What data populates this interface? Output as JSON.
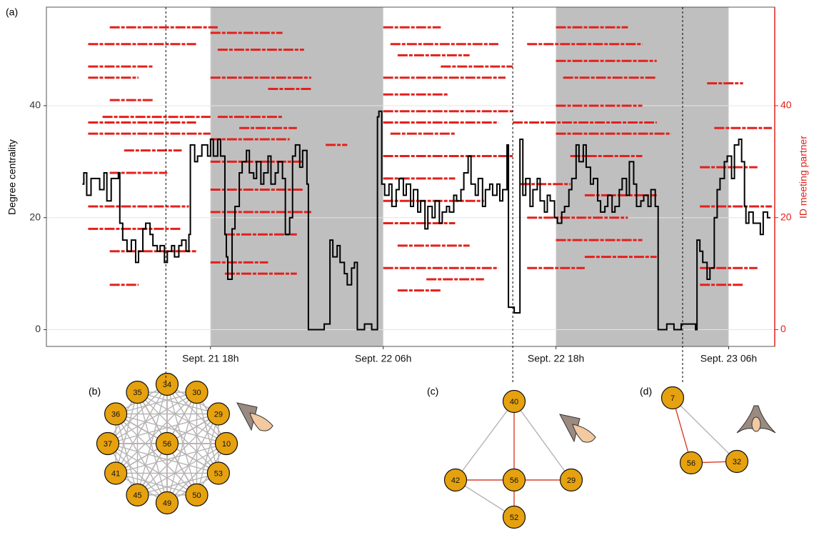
{
  "chart_data": {
    "type": "line",
    "panel_label": "(a)",
    "y_label": "Degree centrality",
    "y2_label": "ID meeting partner",
    "xlim": [
      6.6,
      57.2
    ],
    "xticks": [
      {
        "value": 18,
        "label": "Sept. 21 18h"
      },
      {
        "value": 30,
        "label": "Sept. 22 06h"
      },
      {
        "value": 42,
        "label": "Sept. 22 18h"
      },
      {
        "value": 54,
        "label": "Sept. 23 06h"
      }
    ],
    "ylim": [
      -3,
      57.6
    ],
    "yticks": [
      0,
      20,
      40
    ],
    "y2lim": [
      -3,
      57.6
    ],
    "y2ticks": [
      0,
      20,
      40
    ],
    "grid": true,
    "night_shading": {
      "color": "#c0bfc0",
      "ranges": [
        [
          18,
          30
        ],
        [
          42,
          54
        ]
      ]
    },
    "markers": [
      14.9,
      39.0,
      50.8
    ],
    "series": [
      {
        "color": "#000000",
        "x": [
          9.1,
          9.2,
          9.4,
          9.7,
          10.1,
          10.3,
          10.6,
          10.8,
          11.1,
          11.3,
          11.6,
          11.7,
          11.9,
          12.2,
          12.5,
          12.8,
          13.0,
          13.3,
          13.5,
          13.8,
          14.0,
          14.3,
          14.5,
          14.8,
          15.0,
          15.3,
          15.5,
          15.8,
          16.0,
          16.3,
          16.5,
          16.6,
          16.9,
          17.1,
          17.4,
          17.8,
          18.0,
          18.2,
          18.5,
          18.7,
          19.0,
          19.1,
          19.2,
          19.5,
          19.7,
          20.0,
          20.2,
          20.5,
          20.7,
          21.0,
          21.2,
          21.5,
          21.7,
          22.0,
          22.2,
          22.5,
          22.7,
          23.0,
          23.2,
          23.5,
          23.7,
          23.9,
          24.2,
          24.4,
          24.7,
          24.8,
          25.9,
          26.3,
          26.5,
          26.8,
          27.0,
          27.3,
          27.5,
          27.8,
          28.0,
          28.2,
          28.7,
          29.2,
          29.6,
          29.7,
          29.9,
          30.1,
          30.4,
          30.6,
          30.9,
          31.1,
          31.4,
          31.6,
          31.9,
          32.1,
          32.4,
          32.6,
          32.9,
          33.1,
          33.4,
          33.6,
          33.9,
          34.1,
          34.4,
          34.6,
          34.9,
          35.1,
          35.4,
          35.6,
          35.9,
          36.1,
          36.4,
          36.6,
          36.9,
          37.1,
          37.4,
          37.6,
          37.9,
          38.1,
          38.3,
          38.6,
          38.7,
          39.1,
          39.5,
          39.7,
          39.9,
          40.2,
          40.4,
          40.7,
          40.9,
          41.2,
          41.4,
          41.6,
          41.9,
          42.1,
          42.4,
          42.6,
          42.9,
          43.1,
          43.4,
          43.6,
          43.9,
          44.1,
          44.4,
          44.6,
          44.9,
          45.1,
          45.4,
          45.6,
          45.9,
          46.1,
          46.4,
          46.6,
          46.9,
          47.1,
          47.4,
          47.6,
          47.9,
          48.1,
          48.4,
          48.6,
          48.9,
          49.1,
          49.7,
          50.2,
          50.7,
          51.7,
          51.8,
          52.0,
          52.2,
          52.5,
          52.7,
          53.0,
          53.2,
          53.4,
          53.7,
          53.9,
          54.2,
          54.4,
          54.7,
          54.9,
          55.1,
          55.2,
          55.4,
          55.7,
          55.9,
          56.2,
          56.4,
          56.7,
          56.9
        ],
        "values": [
          26,
          28,
          24,
          27,
          27,
          25,
          28,
          23,
          27,
          27,
          28,
          19,
          16,
          14,
          16,
          12,
          14,
          18,
          19,
          17,
          15,
          14,
          15,
          12,
          14,
          15,
          13,
          15,
          16,
          14,
          17,
          33,
          30,
          31,
          33,
          31,
          34,
          31,
          34,
          31,
          17,
          13,
          9,
          18,
          22,
          28,
          30,
          32,
          28,
          27,
          30,
          26,
          28,
          31,
          26,
          28,
          30,
          27,
          17,
          20,
          31,
          33,
          29,
          32,
          26,
          0,
          1,
          16,
          13,
          15,
          12,
          10,
          8,
          11,
          12,
          0,
          1,
          0,
          38,
          39,
          26,
          24,
          26,
          22,
          25,
          27,
          24,
          26,
          22,
          25,
          21,
          23,
          18,
          22,
          20,
          23,
          19,
          21,
          22,
          21,
          24,
          23,
          25,
          28,
          31,
          26,
          24,
          27,
          22,
          25,
          26,
          24,
          26,
          23,
          25,
          33,
          4,
          3,
          34,
          24,
          27,
          22,
          25,
          27,
          23,
          21,
          24,
          23,
          20,
          19,
          21,
          22,
          25,
          27,
          33,
          30,
          33,
          29,
          26,
          27,
          23,
          21,
          22,
          24,
          21,
          22,
          25,
          27,
          24,
          30,
          26,
          22,
          23,
          24,
          22,
          25,
          22,
          0,
          1,
          0,
          1,
          0,
          16,
          14,
          12,
          9,
          11,
          20,
          25,
          27,
          30,
          31,
          27,
          33,
          34,
          30,
          22,
          19,
          21,
          19,
          19,
          17,
          21,
          20,
          20
        ]
      }
    ],
    "meetings": {
      "color": "#e3201b",
      "id": [
        54,
        54,
        54,
        53,
        51,
        51,
        51,
        50,
        49,
        48,
        47,
        47,
        45,
        45,
        45,
        45,
        44,
        43,
        42,
        41,
        40,
        39,
        38,
        38,
        37,
        37,
        37,
        36,
        36,
        35,
        35,
        35,
        34,
        33,
        32,
        31,
        31,
        30,
        29,
        28,
        27,
        26,
        25,
        24,
        23,
        22,
        22,
        21,
        20,
        19,
        18,
        17,
        16,
        15,
        14,
        13,
        12,
        11,
        11,
        11,
        10,
        9,
        8,
        8,
        7
      ],
      "start": [
        11,
        30,
        42,
        18,
        9.5,
        30.5,
        40,
        18.5,
        31,
        42,
        9.5,
        34,
        9.5,
        18,
        30,
        42.5,
        52.5,
        22,
        30,
        11,
        42,
        30,
        10.5,
        18.5,
        9.5,
        30,
        39,
        20,
        53,
        9.5,
        30.5,
        42,
        18,
        26,
        12,
        30,
        43,
        18,
        52,
        11,
        30,
        39.5,
        18,
        44,
        30,
        9.5,
        52,
        18,
        40,
        30,
        9.5,
        19,
        42,
        31,
        11,
        44,
        18,
        30,
        40,
        52,
        19,
        33,
        11,
        52,
        31
      ],
      "end": [
        18.5,
        34,
        47,
        23,
        17,
        38,
        48,
        24.5,
        36,
        49,
        14,
        39,
        13,
        25,
        38.5,
        49,
        55,
        25,
        34.5,
        14,
        48,
        39,
        18,
        23,
        17,
        38,
        49,
        24,
        57,
        18,
        35,
        50,
        23.5,
        27.5,
        16,
        39,
        48,
        24.5,
        56,
        15,
        35,
        43,
        24.5,
        49,
        37,
        16.5,
        57,
        25,
        47,
        35,
        16,
        24,
        48,
        36,
        17,
        49,
        22,
        38,
        44,
        56,
        24,
        37,
        13,
        55,
        34
      ]
    }
  },
  "networks": [
    {
      "label": "(b)",
      "nodes": [
        "56",
        "34",
        "30",
        "29",
        "10",
        "53",
        "50",
        "49",
        "45",
        "41",
        "37",
        "36",
        "35"
      ]
    },
    {
      "label": "(c)",
      "nodes": [
        "40",
        "42",
        "56",
        "29",
        "52"
      ]
    },
    {
      "label": "(d)",
      "nodes": [
        "7",
        "56",
        "32"
      ]
    }
  ]
}
